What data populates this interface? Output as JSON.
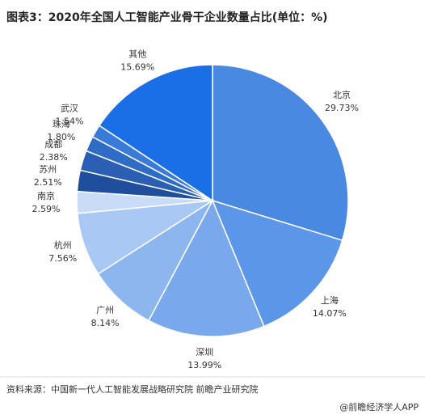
{
  "chart_data": {
    "type": "pie",
    "title": "图表3：2020年全国人工智能产业骨干企业数量占比(单位：%)",
    "categories": [
      "北京",
      "上海",
      "深圳",
      "广州",
      "杭州",
      "南京",
      "苏州",
      "成都",
      "珠海",
      "武汉",
      "其他"
    ],
    "values": [
      29.73,
      14.07,
      13.99,
      8.14,
      7.56,
      2.59,
      2.51,
      2.38,
      1.8,
      1.54,
      15.69
    ],
    "value_labels": [
      "29.73%",
      "14.07%",
      "13.99%",
      "8.14%",
      "7.56%",
      "2.59%",
      "2.51%",
      "2.38%",
      "1.80%",
      "1.54%",
      "15.69%"
    ],
    "colors": [
      "#4a89e2",
      "#5b96e8",
      "#79a9ec",
      "#8db6ef",
      "#a9c8f3",
      "#c9dcf7",
      "#1f4f9c",
      "#2a5fb4",
      "#2f6cc6",
      "#3a7bd9",
      "#1b6fe6"
    ],
    "source": "资料来源：中国新一代人工智能发展战略研究院 前瞻产业研究院",
    "watermark": "@前瞻经济学人APP"
  }
}
